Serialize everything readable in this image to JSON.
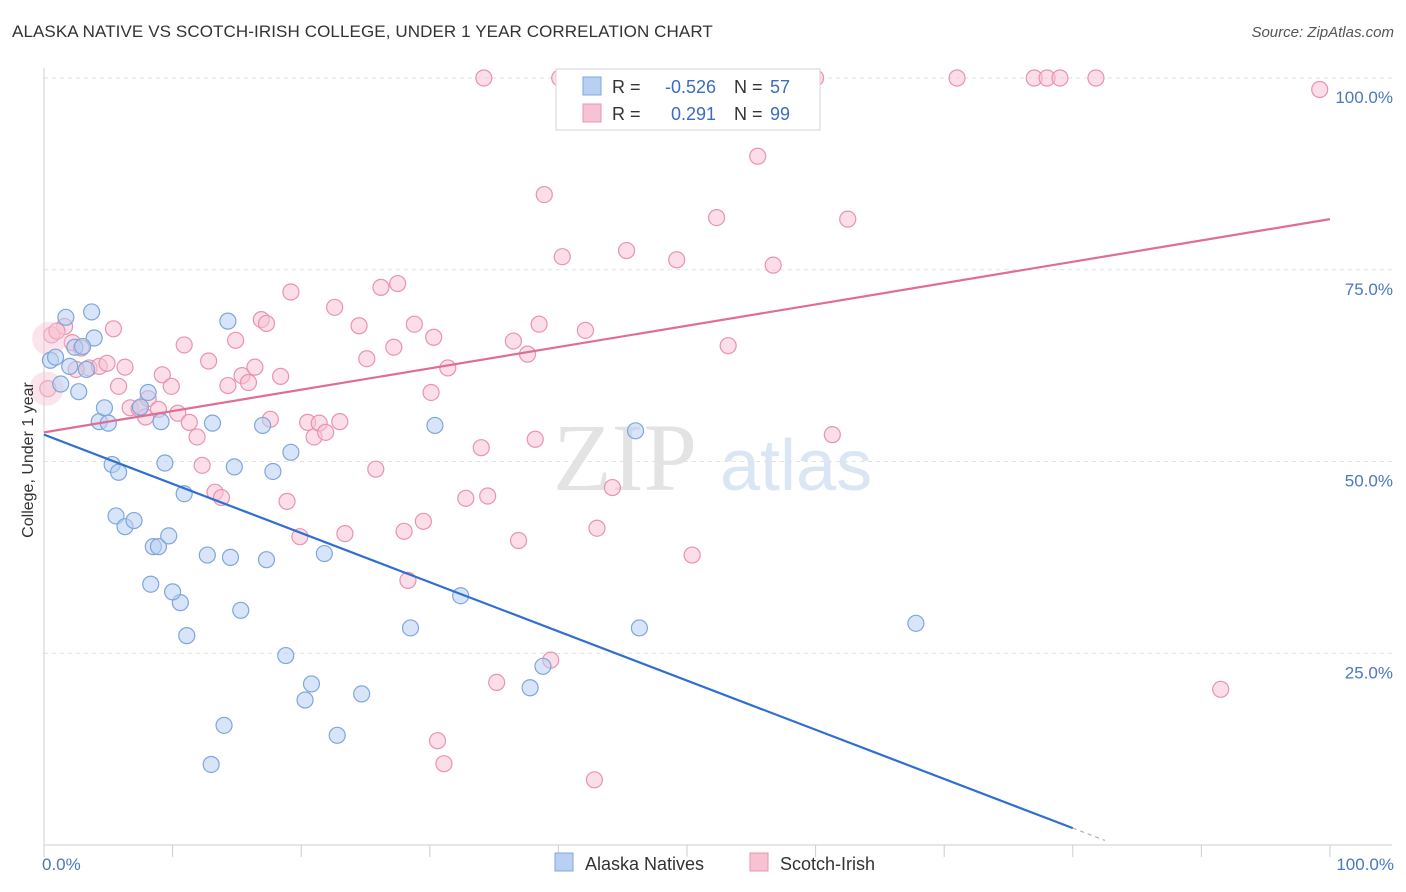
{
  "title": "ALASKA NATIVE VS SCOTCH-IRISH COLLEGE, UNDER 1 YEAR CORRELATION CHART",
  "source": "Source: ZipAtlas.com",
  "watermark": {
    "zip": "ZIP",
    "atlas": "atlas"
  },
  "colors": {
    "blue_fill": "#b8d0f2",
    "blue_stroke": "#7fa6dc",
    "blue_line": "#2f6fd0",
    "pink_fill": "#f7c3d3",
    "pink_stroke": "#e893b0",
    "pink_line": "#e06d96",
    "grid": "#e2e2e2",
    "axis": "#cccccc",
    "tick_text": "#4a78c2"
  },
  "legend_box": {
    "rows": [
      {
        "r_label": "R =",
        "r_value": "-0.526",
        "n_label": "N =",
        "n_value": "57"
      },
      {
        "r_label": "R =",
        "r_value": "0.291",
        "n_label": "N =",
        "n_value": "99"
      }
    ]
  },
  "bottom_legend": [
    "Alaska Natives",
    "Scotch-Irish"
  ],
  "chart_data": {
    "type": "scatter",
    "xlabel": "",
    "ylabel": "College, Under 1 year",
    "xlim": [
      0,
      100
    ],
    "ylim": [
      0,
      100
    ],
    "x_tick_labels": [
      "0.0%",
      "100.0%"
    ],
    "y_ticks": [
      25,
      50,
      75,
      100
    ],
    "y_tick_labels": [
      "25.0%",
      "50.0%",
      "75.0%",
      "100.0%"
    ],
    "grid": true,
    "legend_position": "top-center",
    "series": [
      {
        "name": "Alaska Natives",
        "r": -0.526,
        "n": 57,
        "trend": {
          "x0": 0,
          "y0": 53.5,
          "x1": 80,
          "y1": 2.2,
          "dash_to_x": 82.5
        },
        "points": [
          [
            0.5,
            63.2
          ],
          [
            0.9,
            63.6
          ],
          [
            1.3,
            60.1
          ],
          [
            1.7,
            68.8
          ],
          [
            2.0,
            62.4
          ],
          [
            2.4,
            64.9
          ],
          [
            2.7,
            59.1
          ],
          [
            3.3,
            62.0
          ],
          [
            3.7,
            69.5
          ],
          [
            3.9,
            66.1
          ],
          [
            4.3,
            55.2
          ],
          [
            4.7,
            57.0
          ],
          [
            5.3,
            49.6
          ],
          [
            5.8,
            48.6
          ],
          [
            5.6,
            42.9
          ],
          [
            6.3,
            41.5
          ],
          [
            7.0,
            42.3
          ],
          [
            7.5,
            57.1
          ],
          [
            8.1,
            59.0
          ],
          [
            8.5,
            38.9
          ],
          [
            8.3,
            34.0
          ],
          [
            8.9,
            38.9
          ],
          [
            9.1,
            55.2
          ],
          [
            9.4,
            49.8
          ],
          [
            9.7,
            40.3
          ],
          [
            10.6,
            31.6
          ],
          [
            10.9,
            45.8
          ],
          [
            11.1,
            27.3
          ],
          [
            12.7,
            37.8
          ],
          [
            13.0,
            10.5
          ],
          [
            13.1,
            55.0
          ],
          [
            14.0,
            15.6
          ],
          [
            14.3,
            68.3
          ],
          [
            14.5,
            37.5
          ],
          [
            14.8,
            49.3
          ],
          [
            15.3,
            30.6
          ],
          [
            17.0,
            54.7
          ],
          [
            17.3,
            37.2
          ],
          [
            17.8,
            48.7
          ],
          [
            18.8,
            24.7
          ],
          [
            19.2,
            51.2
          ],
          [
            20.3,
            18.9
          ],
          [
            20.8,
            21.0
          ],
          [
            21.8,
            38.0
          ],
          [
            22.8,
            14.3
          ],
          [
            24.7,
            19.7
          ],
          [
            28.5,
            28.3
          ],
          [
            30.4,
            54.7
          ],
          [
            32.4,
            32.5
          ],
          [
            37.8,
            20.5
          ],
          [
            38.8,
            23.3
          ],
          [
            46.0,
            54.0
          ],
          [
            46.3,
            28.3
          ],
          [
            67.8,
            28.9
          ],
          [
            3.0,
            65.0
          ],
          [
            5.0,
            55.0
          ],
          [
            10.0,
            33.0
          ]
        ]
      },
      {
        "name": "Scotch-Irish",
        "r": 0.291,
        "n": 99,
        "trend": {
          "x0": 0,
          "y0": 53.8,
          "x1": 100,
          "y1": 81.6
        },
        "points": [
          [
            0.3,
            59.5
          ],
          [
            0.6,
            66.5
          ],
          [
            1.6,
            67.6
          ],
          [
            2.2,
            65.5
          ],
          [
            2.9,
            64.8
          ],
          [
            3.5,
            62.2
          ],
          [
            4.3,
            62.4
          ],
          [
            4.9,
            62.8
          ],
          [
            5.4,
            67.3
          ],
          [
            5.8,
            59.8
          ],
          [
            6.3,
            62.3
          ],
          [
            6.7,
            57.0
          ],
          [
            7.4,
            56.9
          ],
          [
            7.9,
            55.8
          ],
          [
            8.1,
            58.2
          ],
          [
            8.9,
            56.8
          ],
          [
            9.2,
            61.3
          ],
          [
            9.9,
            59.8
          ],
          [
            10.4,
            56.3
          ],
          [
            10.9,
            65.2
          ],
          [
            11.3,
            55.1
          ],
          [
            11.9,
            53.2
          ],
          [
            12.3,
            49.5
          ],
          [
            12.8,
            63.1
          ],
          [
            13.3,
            46.0
          ],
          [
            13.8,
            45.3
          ],
          [
            14.3,
            59.9
          ],
          [
            14.9,
            65.8
          ],
          [
            15.4,
            61.2
          ],
          [
            15.9,
            60.3
          ],
          [
            16.4,
            62.3
          ],
          [
            16.9,
            68.5
          ],
          [
            17.3,
            68.0
          ],
          [
            17.6,
            55.5
          ],
          [
            18.4,
            61.1
          ],
          [
            18.9,
            44.8
          ],
          [
            19.2,
            72.1
          ],
          [
            19.9,
            40.2
          ],
          [
            20.5,
            55.1
          ],
          [
            21.0,
            53.2
          ],
          [
            21.4,
            55.0
          ],
          [
            21.9,
            53.8
          ],
          [
            22.6,
            70.1
          ],
          [
            23.0,
            55.2
          ],
          [
            23.4,
            40.6
          ],
          [
            24.5,
            67.7
          ],
          [
            25.1,
            63.4
          ],
          [
            25.8,
            49.0
          ],
          [
            26.2,
            72.7
          ],
          [
            27.2,
            64.9
          ],
          [
            27.5,
            73.2
          ],
          [
            28.0,
            40.9
          ],
          [
            28.3,
            34.5
          ],
          [
            28.8,
            67.9
          ],
          [
            29.5,
            42.2
          ],
          [
            30.1,
            59.0
          ],
          [
            30.3,
            66.2
          ],
          [
            30.6,
            13.6
          ],
          [
            31.1,
            10.6
          ],
          [
            31.4,
            62.2
          ],
          [
            32.8,
            45.2
          ],
          [
            34.0,
            51.8
          ],
          [
            34.5,
            45.5
          ],
          [
            35.2,
            21.2
          ],
          [
            36.5,
            65.7
          ],
          [
            36.9,
            39.7
          ],
          [
            37.6,
            64.0
          ],
          [
            38.2,
            52.9
          ],
          [
            38.5,
            67.9
          ],
          [
            38.9,
            84.8
          ],
          [
            39.4,
            24.1
          ],
          [
            40.3,
            76.7
          ],
          [
            42.1,
            67.1
          ],
          [
            42.8,
            8.5
          ],
          [
            43.0,
            41.3
          ],
          [
            44.2,
            46.6
          ],
          [
            45.3,
            77.5
          ],
          [
            47.0,
            100.0
          ],
          [
            49.2,
            76.3
          ],
          [
            50.4,
            37.8
          ],
          [
            52.3,
            81.8
          ],
          [
            53.2,
            65.1
          ],
          [
            55.5,
            89.8
          ],
          [
            56.7,
            75.6
          ],
          [
            60.0,
            100.0
          ],
          [
            61.3,
            53.5
          ],
          [
            62.5,
            81.6
          ],
          [
            71.0,
            100.0
          ],
          [
            77.0,
            100.0
          ],
          [
            78.0,
            100.0
          ],
          [
            79.0,
            100.0
          ],
          [
            81.8,
            100.0
          ],
          [
            91.5,
            20.3
          ],
          [
            99.2,
            98.5
          ],
          [
            1.0,
            67.0
          ],
          [
            2.5,
            62.0
          ],
          [
            34.2,
            100.0
          ],
          [
            40.1,
            100.0
          ],
          [
            41.0,
            100.0
          ]
        ]
      }
    ]
  }
}
